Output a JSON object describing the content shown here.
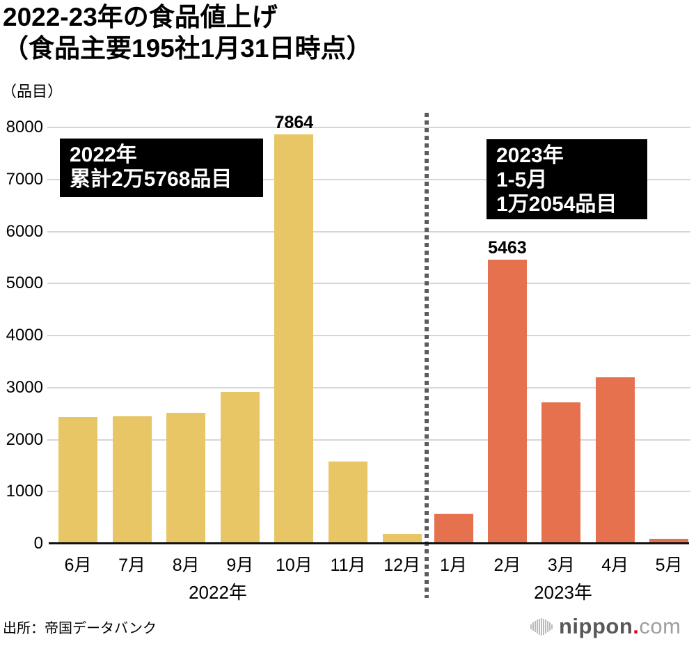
{
  "title": {
    "line1": "2022-23年の食品値上げ",
    "line2": "（食品主要195社1月31日時点）"
  },
  "y_axis": {
    "unit_label": "（品目）",
    "ticks_top_to_bottom": [
      "8000",
      "7000",
      "6000",
      "5000",
      "4000",
      "3000",
      "2000",
      "1000",
      "0"
    ],
    "max": 8000,
    "min": 0,
    "step": 1000
  },
  "chart_data": {
    "type": "bar",
    "title": "2022-23年の食品値上げ（食品主要195社1月31日時点）",
    "xlabel": "",
    "ylabel": "品目",
    "ylim": [
      0,
      8000
    ],
    "grid": true,
    "legend": false,
    "series": [
      {
        "name": "2022年",
        "color": "#e8c666",
        "categories": [
          "6月",
          "7月",
          "8月",
          "9月",
          "10月",
          "11月",
          "12月"
        ],
        "values": [
          2430,
          2450,
          2520,
          2920,
          7864,
          1580,
          190
        ]
      },
      {
        "name": "2023年",
        "color": "#e5714e",
        "categories": [
          "1月",
          "2月",
          "3月",
          "4月",
          "5月"
        ],
        "values": [
          580,
          5463,
          2720,
          3200,
          90
        ]
      }
    ],
    "labeled_bars": [
      {
        "series": 0,
        "index": 4,
        "label": "7864"
      },
      {
        "series": 1,
        "index": 1,
        "label": "5463"
      }
    ],
    "divider_note": "dotted vertical line separates 2022 and 2023"
  },
  "annotations": {
    "left": {
      "lines": [
        "2022年",
        "累計2万5768品目"
      ]
    },
    "right": {
      "lines": [
        "2023年",
        "1-5月",
        "1万2054品目"
      ]
    }
  },
  "source": "出所：帝国データバンク",
  "logo": {
    "icon": "soundwave-bars-icon",
    "name": "nippon",
    "dot": ".",
    "tld": "com",
    "name_color": "#595757",
    "dot_color": "#e60012",
    "tld_color": "#9e9fa0"
  },
  "colors": {
    "bar_2022": "#e8c666",
    "bar_2023": "#e5714e",
    "gridline": "#d6d6d6",
    "axis": "#111111",
    "divider": "#5c5c5c",
    "callout_bg": "#000000",
    "callout_text": "#ffffff"
  }
}
